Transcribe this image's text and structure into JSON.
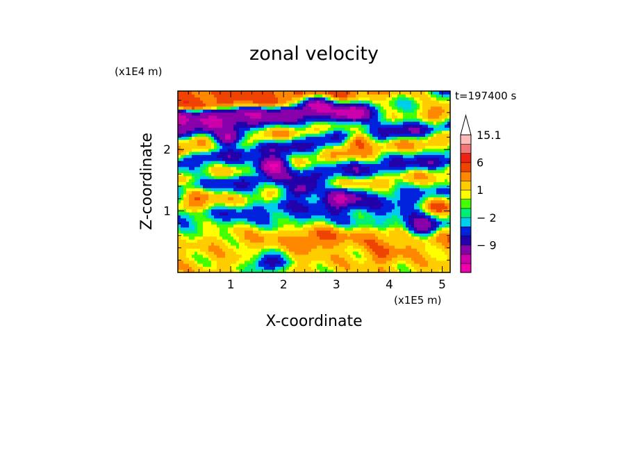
{
  "chart_data": {
    "type": "heatmap",
    "title": "zonal velocity",
    "xlabel": "X-coordinate",
    "ylabel": "Z-coordinate",
    "x_unit": "(x1E5 m)",
    "y_unit": "(x1E4 m)",
    "time_label": "t=197400 s",
    "xlim": [
      0,
      5.15
    ],
    "ylim": [
      0,
      2.95
    ],
    "x_ticks": [
      1,
      2,
      3,
      4,
      5
    ],
    "x_tick_labels": [
      "1",
      "2",
      "3",
      "4",
      "5"
    ],
    "y_ticks": [
      1,
      2
    ],
    "y_tick_labels": [
      "1",
      "2"
    ],
    "colorbar": {
      "levels": [
        -15,
        -12,
        -9,
        -6,
        -4,
        -2,
        -1,
        0,
        1,
        2,
        4,
        6,
        9,
        12,
        15.1
      ],
      "colors": [
        "#ee00aa",
        "#cc00aa",
        "#8800aa",
        "#2200aa",
        "#0022dd",
        "#00ccee",
        "#00ee77",
        "#44ff00",
        "#ffff00",
        "#ffcc00",
        "#ff8800",
        "#ee4400",
        "#ee2211",
        "#ee7777",
        "#ffbbbb"
      ],
      "labels": [
        "15.1",
        "6",
        "1",
        "− 2",
        "− 9"
      ],
      "label_values": [
        15.1,
        6,
        1,
        -2,
        -9
      ],
      "extend_top": true
    },
    "bands": [
      {
        "y": 0.3,
        "value": 2.5,
        "slope": 0.0
      },
      {
        "y": 0.6,
        "value": 4.5,
        "slope": -0.05
      },
      {
        "y": 0.85,
        "value": -1.5,
        "slope": 0.06
      },
      {
        "y": 1.1,
        "value": -4,
        "slope": 0.1
      },
      {
        "y": 1.35,
        "value": 4,
        "slope": 0.08
      },
      {
        "y": 1.6,
        "value": -6,
        "slope": 0.12
      },
      {
        "y": 1.85,
        "value": 5,
        "slope": 0.1
      },
      {
        "y": 2.1,
        "value": -7,
        "slope": 0.15
      },
      {
        "y": 2.35,
        "value": 6,
        "slope": 0.12
      },
      {
        "y": 2.55,
        "value": -9,
        "slope": 0.08
      },
      {
        "y": 2.85,
        "value": 7,
        "slope": -0.05
      }
    ],
    "blobs": [
      {
        "x": 1.8,
        "y": 1.75,
        "value": -12
      },
      {
        "x": 3.1,
        "y": 1.2,
        "value": -10
      },
      {
        "x": 2.35,
        "y": 1.35,
        "value": -8
      },
      {
        "x": 0.95,
        "y": 2.2,
        "value": -9
      },
      {
        "x": 2.6,
        "y": 2.7,
        "value": -11
      },
      {
        "x": 3.3,
        "y": 2.6,
        "value": -12
      },
      {
        "x": 4.6,
        "y": 0.75,
        "value": -8
      },
      {
        "x": 2.6,
        "y": 0.55,
        "value": 7
      },
      {
        "x": 3.4,
        "y": 2.1,
        "value": 7
      },
      {
        "x": 0.4,
        "y": 1.2,
        "value": 6
      },
      {
        "x": 5.0,
        "y": 1.1,
        "value": 7
      },
      {
        "x": 4.95,
        "y": 2.6,
        "value": 6
      },
      {
        "x": 0.35,
        "y": 2.8,
        "value": 7
      },
      {
        "x": 3.9,
        "y": 0.3,
        "value": 6
      },
      {
        "x": 1.7,
        "y": 0.15,
        "value": -6
      }
    ]
  }
}
